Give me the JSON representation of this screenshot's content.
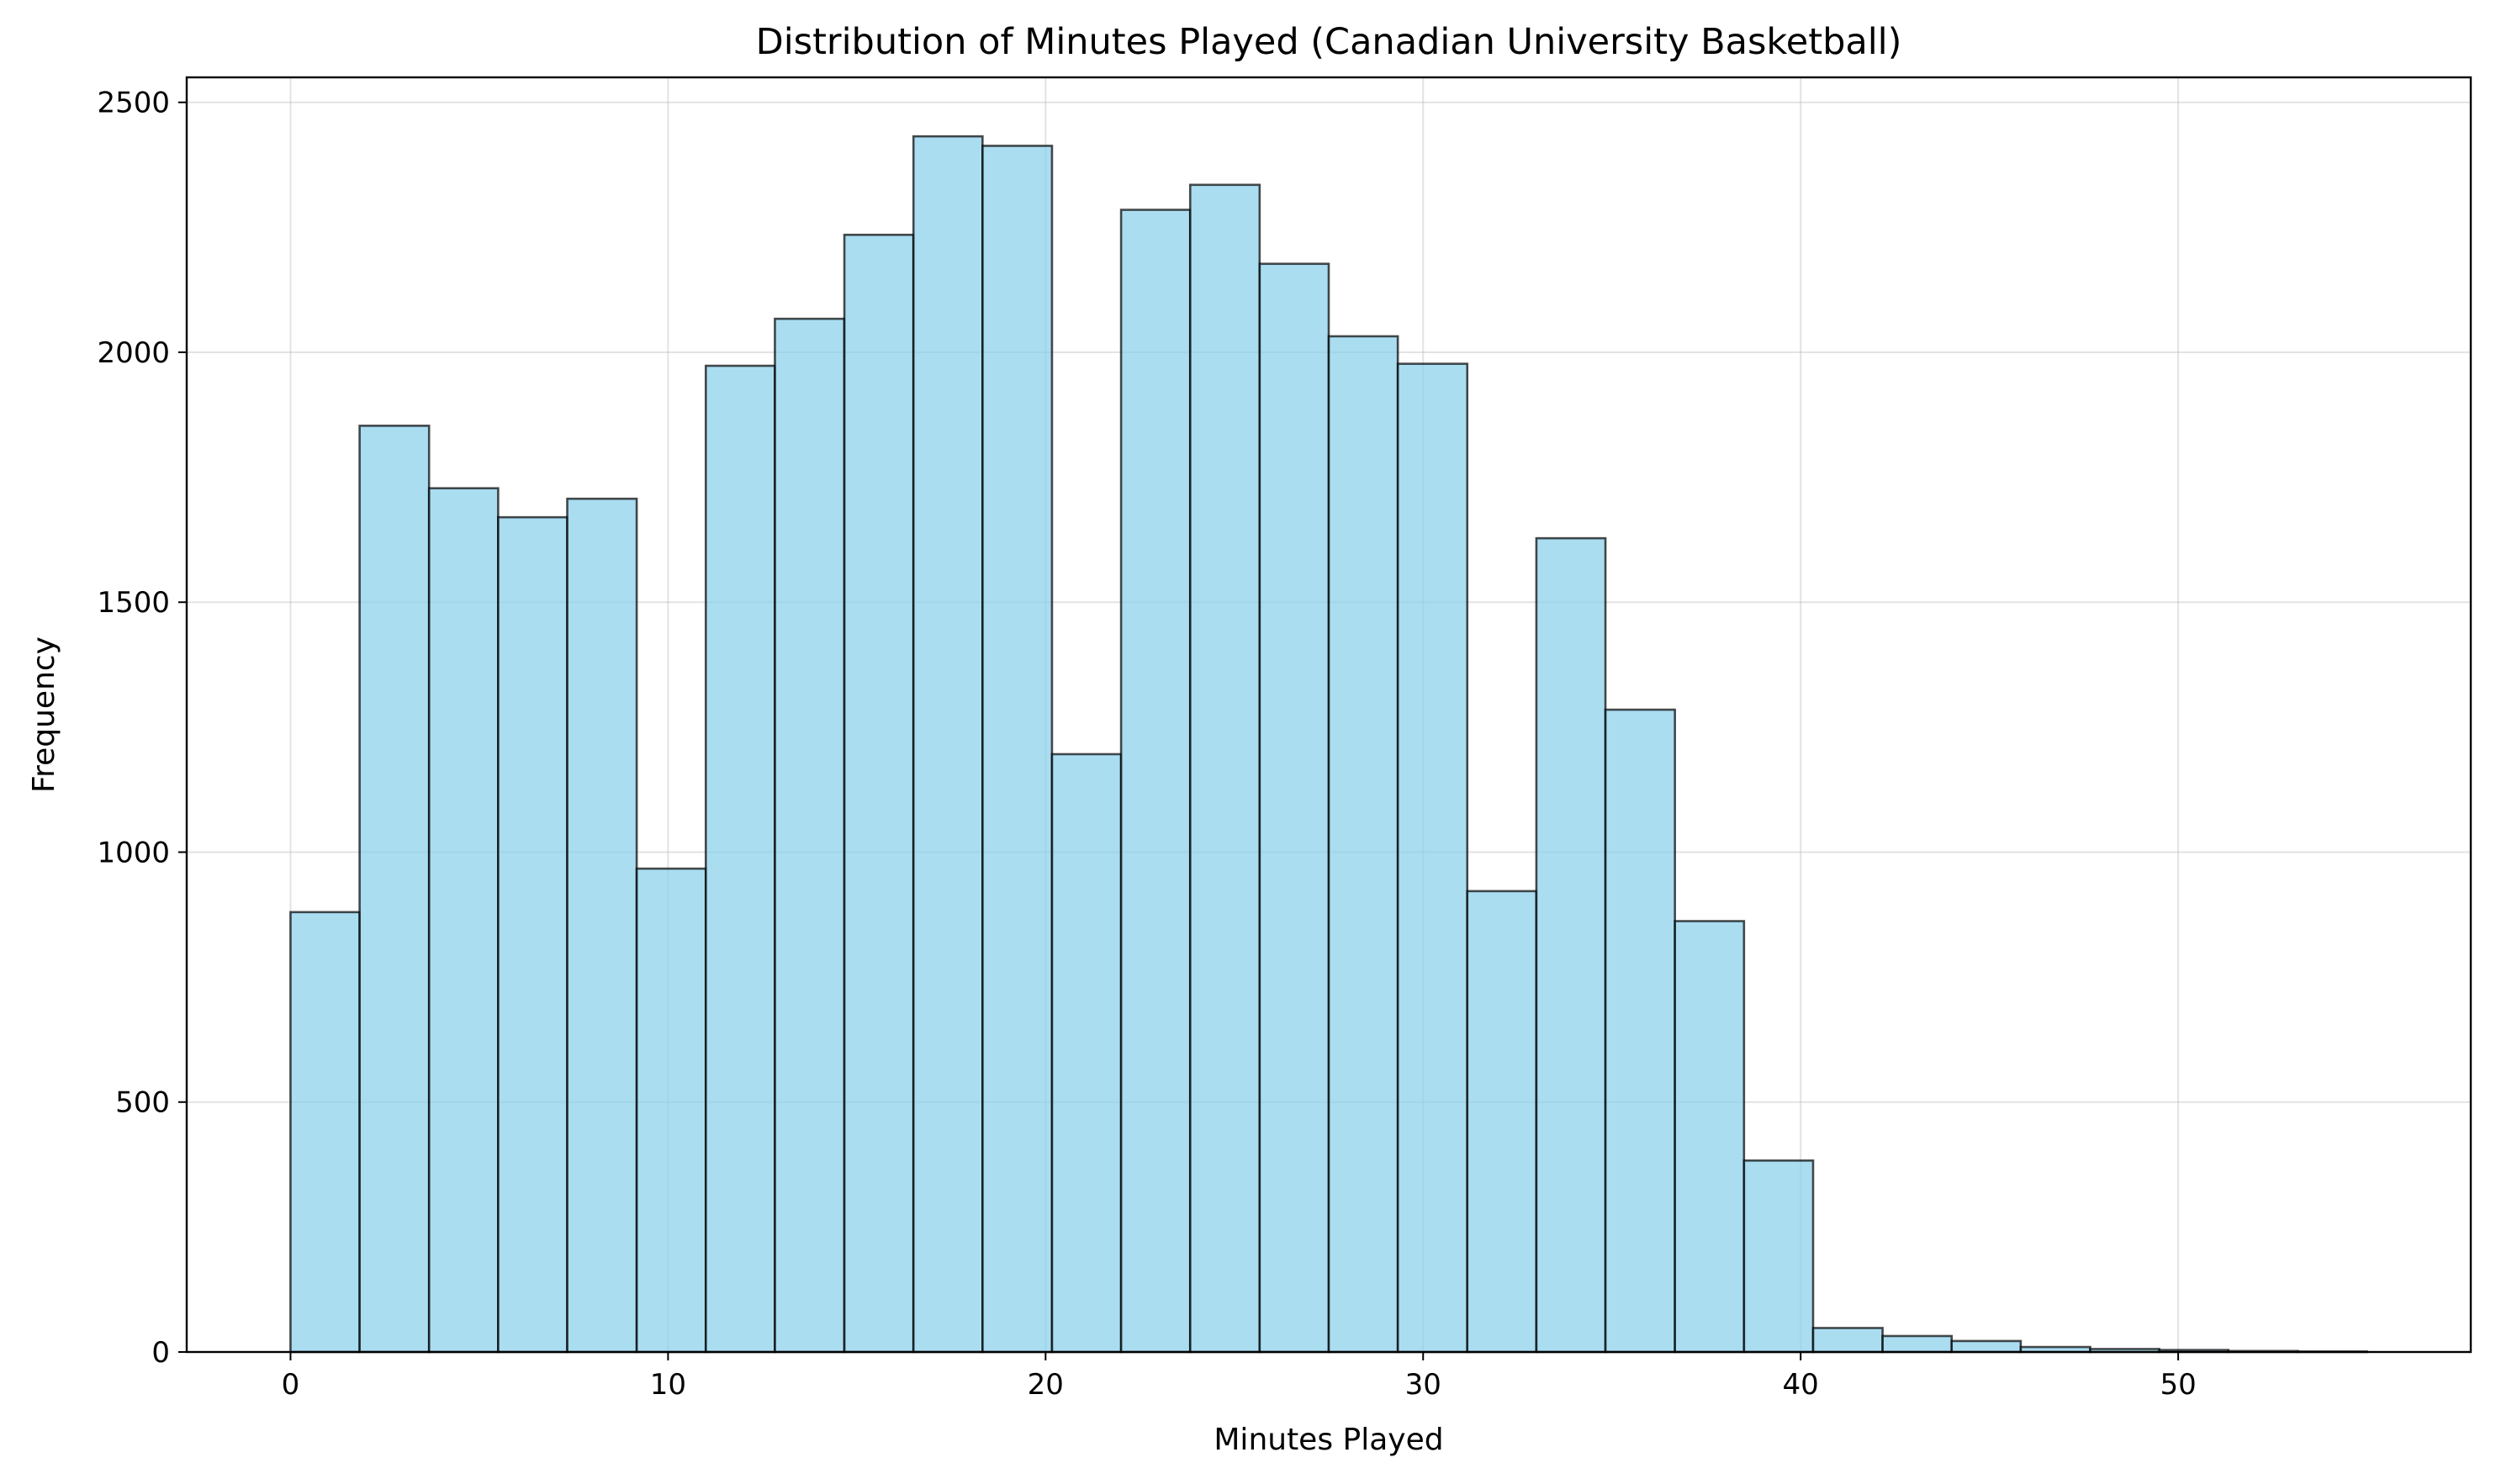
{
  "chart_data": {
    "type": "bar",
    "title": "Distribution of Minutes Played (Canadian University Basketball)",
    "xlabel": "Minutes Played",
    "ylabel": "Frequency",
    "xlim": [
      -2.75,
      57.75
    ],
    "ylim": [
      0,
      2550
    ],
    "xticks": [
      0,
      10,
      20,
      30,
      40,
      50
    ],
    "yticks": [
      0,
      500,
      1000,
      1500,
      2000,
      2500
    ],
    "grid": true,
    "bar_color": "#87ceeb",
    "edge_color": "#000000",
    "bins": [
      {
        "start": 0.0,
        "end": 1.83,
        "count": 880
      },
      {
        "start": 1.83,
        "end": 3.67,
        "count": 1853
      },
      {
        "start": 3.67,
        "end": 5.5,
        "count": 1728
      },
      {
        "start": 5.5,
        "end": 7.33,
        "count": 1670
      },
      {
        "start": 7.33,
        "end": 9.17,
        "count": 1707
      },
      {
        "start": 9.17,
        "end": 11.0,
        "count": 967
      },
      {
        "start": 11.0,
        "end": 12.83,
        "count": 1973
      },
      {
        "start": 12.83,
        "end": 14.67,
        "count": 2067
      },
      {
        "start": 14.67,
        "end": 16.5,
        "count": 2235
      },
      {
        "start": 16.5,
        "end": 18.33,
        "count": 2432
      },
      {
        "start": 18.33,
        "end": 20.17,
        "count": 2413
      },
      {
        "start": 20.17,
        "end": 22.0,
        "count": 1196
      },
      {
        "start": 22.0,
        "end": 23.83,
        "count": 2285
      },
      {
        "start": 23.83,
        "end": 25.67,
        "count": 2335
      },
      {
        "start": 25.67,
        "end": 27.5,
        "count": 2177
      },
      {
        "start": 27.5,
        "end": 29.33,
        "count": 2032
      },
      {
        "start": 29.33,
        "end": 31.17,
        "count": 1977
      },
      {
        "start": 31.17,
        "end": 33.0,
        "count": 922
      },
      {
        "start": 33.0,
        "end": 34.83,
        "count": 1628
      },
      {
        "start": 34.83,
        "end": 36.67,
        "count": 1285
      },
      {
        "start": 36.67,
        "end": 38.5,
        "count": 862
      },
      {
        "start": 38.5,
        "end": 40.33,
        "count": 383
      },
      {
        "start": 40.33,
        "end": 42.17,
        "count": 48
      },
      {
        "start": 42.17,
        "end": 44.0,
        "count": 32
      },
      {
        "start": 44.0,
        "end": 45.83,
        "count": 22
      },
      {
        "start": 45.83,
        "end": 47.67,
        "count": 10
      },
      {
        "start": 47.67,
        "end": 49.5,
        "count": 6
      },
      {
        "start": 49.5,
        "end": 51.33,
        "count": 4
      },
      {
        "start": 51.33,
        "end": 53.17,
        "count": 2
      },
      {
        "start": 53.17,
        "end": 55.0,
        "count": 1
      }
    ]
  }
}
